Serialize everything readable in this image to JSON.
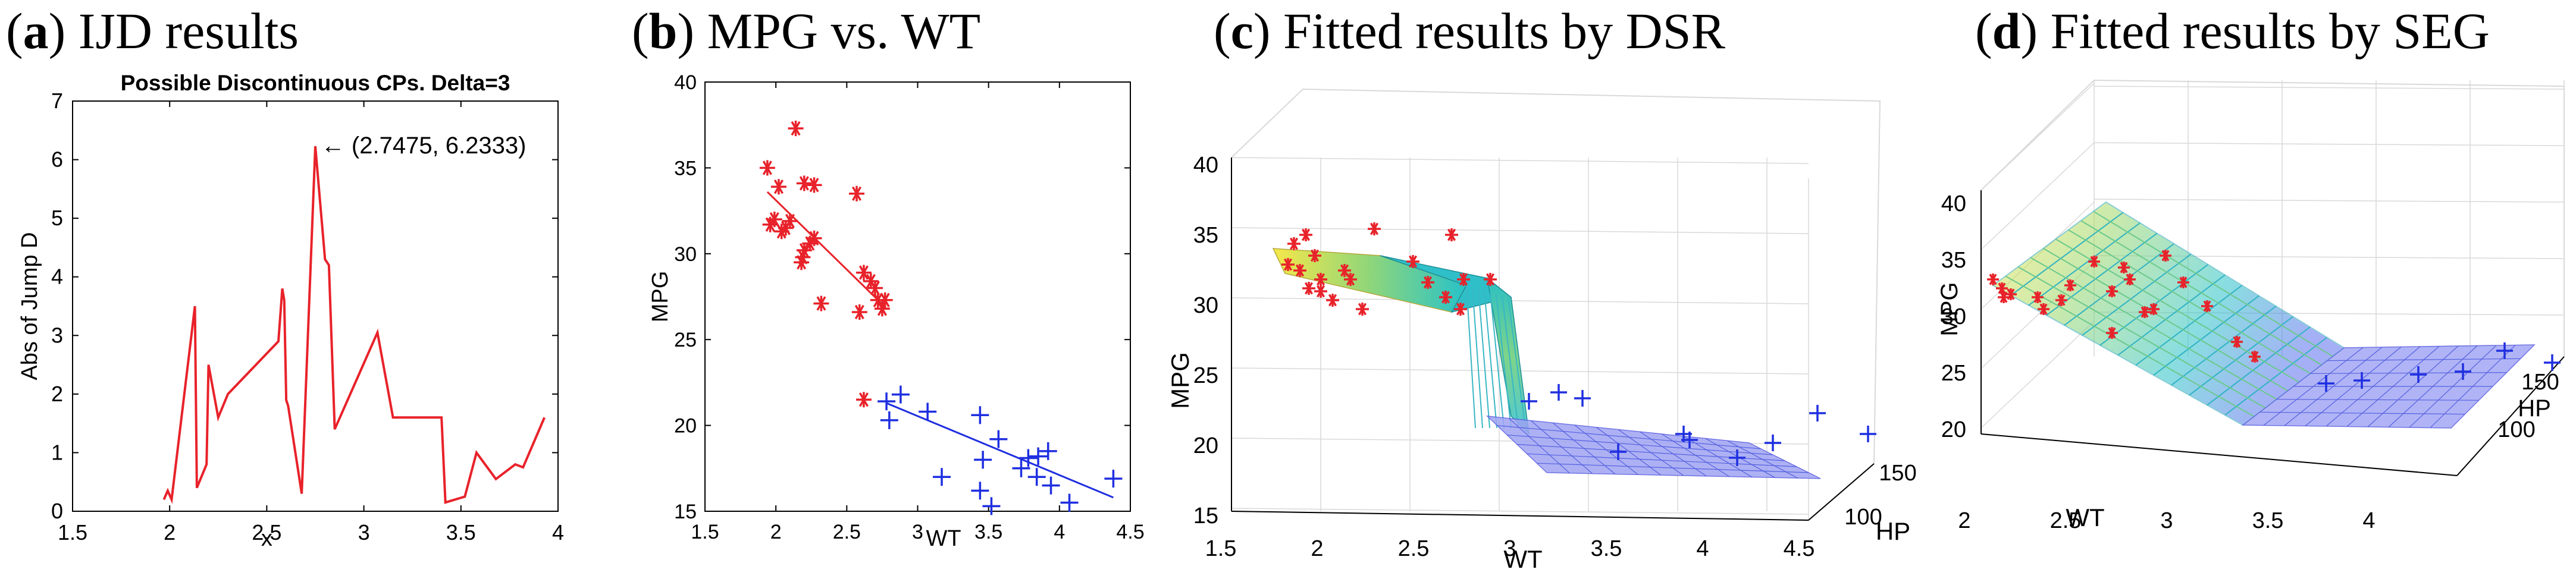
{
  "panels": [
    {
      "letter": "a",
      "title": "IJD results"
    },
    {
      "letter": "b",
      "title": "MPG vs. WT"
    },
    {
      "letter": "c",
      "title": "Fitted results by DSR"
    },
    {
      "letter": "d",
      "title": "Fitted results by SEG"
    }
  ],
  "chart_data": [
    {
      "type": "line",
      "title": "Possible Discontinuous CPs. Delta=3",
      "xlabel": "x",
      "ylabel": "Abs of Jump D",
      "xlim": [
        1.5,
        4
      ],
      "ylim": [
        0,
        7
      ],
      "xticks": [
        "1.5",
        "2",
        "2.5",
        "3",
        "3.5",
        "4"
      ],
      "yticks": [
        "0",
        "1",
        "2",
        "3",
        "4",
        "5",
        "6",
        "7"
      ],
      "annotation": "← (2.7475, 6.2333)",
      "color": "#e8222a",
      "x": [
        1.97,
        1.99,
        2.01,
        2.13,
        2.14,
        2.19,
        2.2,
        2.25,
        2.3,
        2.56,
        2.58,
        2.59,
        2.6,
        2.6,
        2.61,
        2.68,
        2.75,
        2.8,
        2.82,
        2.85,
        3.07,
        3.15,
        3.4,
        3.42,
        3.52,
        3.58,
        3.68,
        3.78,
        3.82,
        3.93
      ],
      "y": [
        0.2,
        0.35,
        0.2,
        3.5,
        0.4,
        0.8,
        2.5,
        1.6,
        2.0,
        2.9,
        3.8,
        3.6,
        1.95,
        1.9,
        1.8,
        0.3,
        6.23,
        4.3,
        4.2,
        1.4,
        3.05,
        1.6,
        1.6,
        0.15,
        0.25,
        1.0,
        0.55,
        0.8,
        0.75,
        1.6
      ]
    },
    {
      "type": "scatter",
      "xlabel": "WT",
      "ylabel": "MPG",
      "xlim": [
        1.5,
        4.5
      ],
      "ylim": [
        15,
        40
      ],
      "xticks": [
        "1.5",
        "2",
        "2.5",
        "3",
        "3.5",
        "4",
        "4.5"
      ],
      "yticks": [
        "15",
        "20",
        "25",
        "30",
        "35",
        "40"
      ],
      "series": [
        {
          "color": "#e8222a",
          "marker": "star",
          "x": [
            1.94,
            1.99,
            1.96,
            2.02,
            2.07,
            2.14,
            2.18,
            2.2,
            2.24,
            2.27,
            2.32,
            2.57,
            2.59,
            2.62,
            2.67,
            2.7,
            2.72,
            2.75,
            2.77,
            2.62,
            2.2,
            2.04,
            2.1,
            2.19,
            2.27
          ],
          "y": [
            35.0,
            32.0,
            31.7,
            33.9,
            31.5,
            37.3,
            29.5,
            30.2,
            30.6,
            30.9,
            27.1,
            33.5,
            26.6,
            28.9,
            28.4,
            28.0,
            27.3,
            26.8,
            27.3,
            21.5,
            34.1,
            31.3,
            31.9,
            29.8,
            34.0
          ],
          "fit": {
            "x": [
              1.94,
              2.77
            ],
            "y": [
              33.6,
              26.9
            ]
          }
        },
        {
          "color": "#1f2fe0",
          "marker": "plus",
          "x": [
            2.78,
            2.8,
            2.88,
            3.07,
            3.17,
            3.44,
            3.46,
            3.44,
            3.52,
            3.57,
            3.73,
            3.78,
            3.84,
            3.85,
            3.92,
            3.94,
            4.07,
            4.38
          ],
          "y": [
            21.4,
            20.3,
            21.8,
            20.8,
            17.0,
            20.6,
            18.0,
            16.2,
            15.3,
            19.2,
            17.5,
            18.1,
            17.0,
            18.2,
            18.5,
            16.5,
            15.5,
            16.9
          ],
          "fit": {
            "x": [
              2.78,
              4.38
            ],
            "y": [
              21.3,
              15.8
            ]
          }
        }
      ]
    },
    {
      "type": "scatter",
      "xlabel": "WT",
      "ylabel": "MPG",
      "zlabel": "HP",
      "xticks": [
        "1.5",
        "2",
        "2.5",
        "3",
        "3.5",
        "4",
        "4.5"
      ],
      "yticks": [
        "15",
        "20",
        "25",
        "30",
        "35",
        "40"
      ],
      "zticks": [
        "100",
        "150"
      ],
      "series": [
        {
          "color": "#e8222a",
          "marker": "star"
        },
        {
          "color": "#1f2fe0",
          "marker": "plus"
        }
      ]
    },
    {
      "type": "scatter",
      "xlabel": "WT",
      "ylabel": "MPG",
      "zlabel": "HP",
      "xticks": [
        "2",
        "2.5",
        "3",
        "3.5",
        "4"
      ],
      "yticks": [
        "20",
        "25",
        "30",
        "35",
        "40"
      ],
      "zticks": [
        "100",
        "150"
      ],
      "series": [
        {
          "color": "#e8222a",
          "marker": "star"
        },
        {
          "color": "#1f2fe0",
          "marker": "plus"
        }
      ]
    }
  ]
}
